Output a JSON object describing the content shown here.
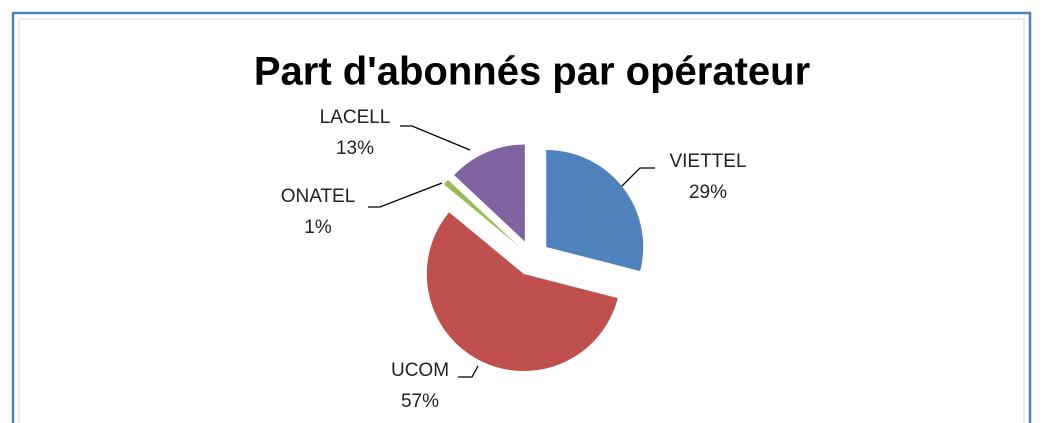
{
  "chart_data": {
    "type": "pie",
    "title": "Part d'abonnés par opérateur",
    "categories": [
      "VIETTEL",
      "UCOM",
      "ONATEL",
      "LACELL"
    ],
    "values": [
      29,
      57,
      1,
      13
    ],
    "value_labels": [
      "29%",
      "57%",
      "1%",
      "13%"
    ],
    "colors": [
      "#4f81bd",
      "#c0504d",
      "#9bbb59",
      "#8064a2"
    ],
    "exploded": true
  }
}
